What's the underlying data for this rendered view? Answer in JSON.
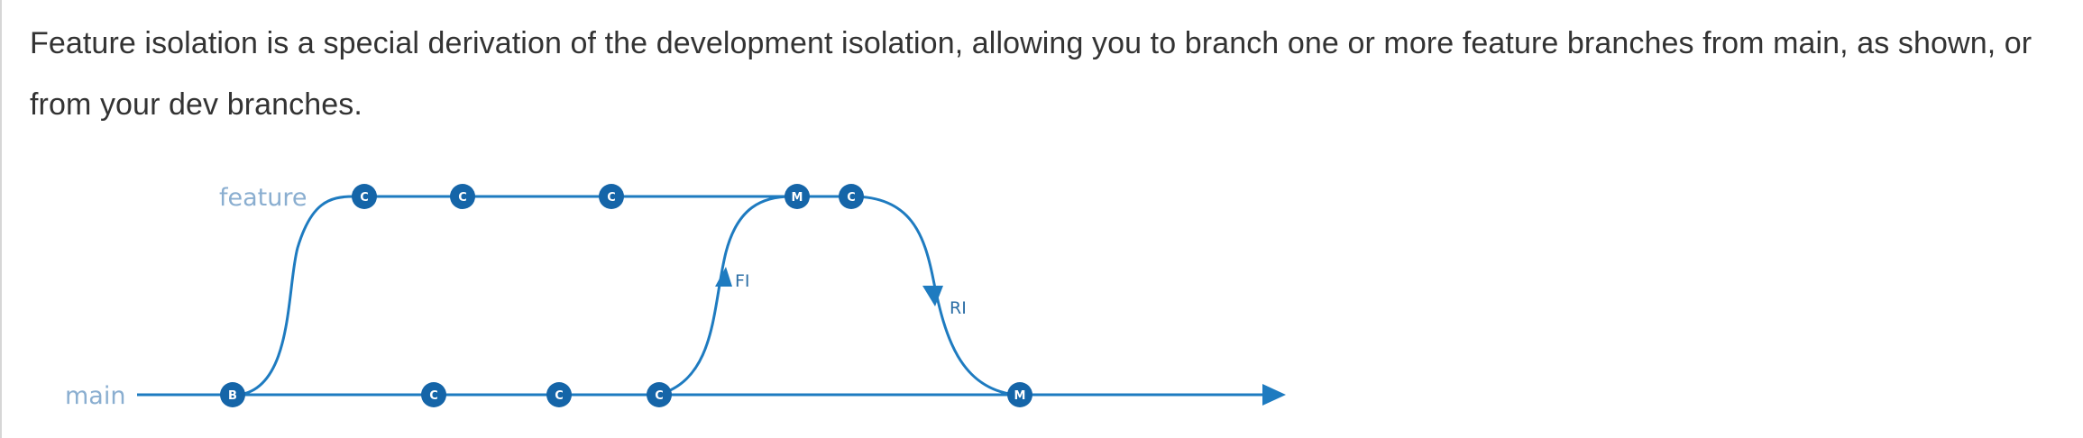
{
  "text": {
    "paragraph": "Feature isolation is a special derivation of the development isolation, allowing you to branch one or more feature branches from main, as shown, or from your dev branches."
  },
  "diagram": {
    "labels": {
      "feature": "feature",
      "main": "main",
      "fi": "FI",
      "ri": "RI"
    },
    "commits": {
      "feature": [
        "C",
        "C",
        "C",
        "M",
        "C"
      ],
      "main": [
        "B",
        "C",
        "C",
        "C",
        "M"
      ]
    }
  },
  "colors": {
    "line": "#1e7bc0",
    "node": "#1565a8",
    "label": "#8aaed0",
    "text": "#333333",
    "border": "#d6d6d6"
  }
}
